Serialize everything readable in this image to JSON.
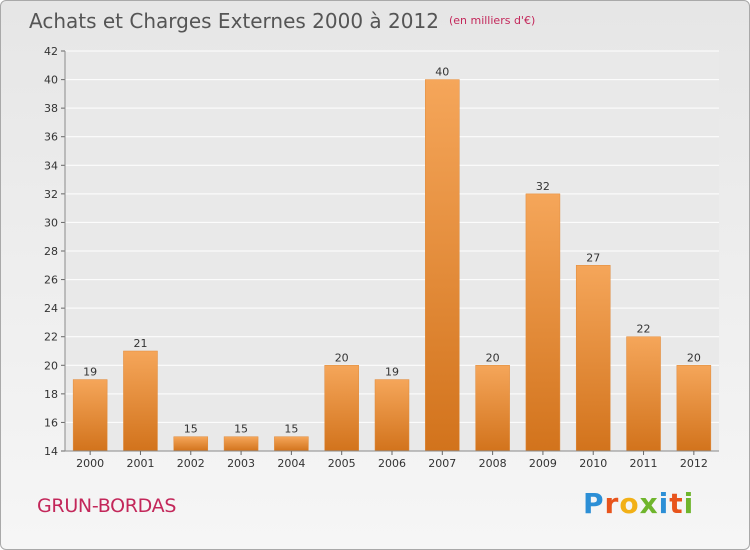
{
  "header": {
    "title": "Achats et Charges Externes 2000 à 2012",
    "unit": "(en milliers d'€)"
  },
  "footer": {
    "place": "GRUN-BORDAS",
    "logo": "Proxiti"
  },
  "colors": {
    "bar_top": "#f5a65a",
    "bar_bottom": "#d2731c",
    "title": "#555555",
    "accent": "#c3275a",
    "gridline": "#ffffff",
    "plot_bg": "#e9e9e9"
  },
  "chart_data": {
    "type": "bar",
    "title": "Achats et Charges Externes 2000 à 2012",
    "categories": [
      "2000",
      "2001",
      "2002",
      "2003",
      "2004",
      "2005",
      "2006",
      "2007",
      "2008",
      "2009",
      "2010",
      "2011",
      "2012"
    ],
    "values": [
      19,
      21,
      15,
      15,
      15,
      20,
      19,
      40,
      20,
      32,
      27,
      22,
      20
    ],
    "xlabel": "",
    "ylabel": "",
    "ylim": [
      14,
      42
    ],
    "yticks": [
      14,
      16,
      18,
      20,
      22,
      24,
      26,
      28,
      30,
      32,
      34,
      36,
      38,
      40,
      42
    ],
    "grid": true,
    "legend": "none"
  }
}
